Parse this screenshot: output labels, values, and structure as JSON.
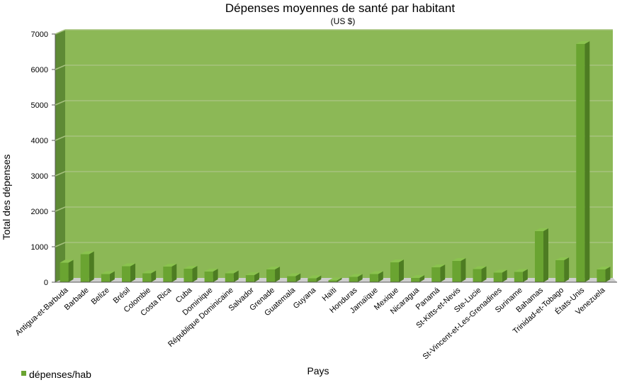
{
  "chart_data": {
    "type": "bar",
    "title": "Dépenses moyennes de santé par habitant",
    "subtitle": "(US $)",
    "xlabel": "Pays",
    "ylabel": "Total des dépenses",
    "ylim": [
      0,
      7000
    ],
    "yticks": [
      "0",
      "1000",
      "2000",
      "3000",
      "4000",
      "5000",
      "6000",
      "7000"
    ],
    "grid": true,
    "legend_position": "bottom-left",
    "colors": {
      "bar_front": "#6aa431",
      "bar_side": "#4d7c22",
      "bar_top": "#8bc34f",
      "plot_background": "#8bb655",
      "back_wall": "#8cb856",
      "side_wall": "#5e8a35",
      "gridline": "#a6c27e"
    },
    "categories": [
      "Antigua-et-Barbuda",
      "Barbade",
      "Belize",
      "Brésil",
      "Colombie",
      "Costa Rica",
      "Cuba",
      "Dominique",
      "République Dominicaine",
      "Salvador",
      "Grenade",
      "Guatemala",
      "Guyana",
      "Haïti",
      "Honduras",
      "Jamaïque",
      "Mexique",
      "Nicaragua",
      "Panamá",
      "St-Kitts-et-Nevis",
      "Ste-Lucie",
      "St-Vincent-et-Les-Grenadines",
      "Suriname",
      "Bahamas",
      "Trinidad-et-Tobago",
      "États-Unis",
      "Venezuela"
    ],
    "series": [
      {
        "name": "dépenses/hab",
        "values": [
          550,
          790,
          230,
          450,
          250,
          440,
          380,
          300,
          250,
          200,
          360,
          170,
          110,
          50,
          150,
          230,
          560,
          120,
          420,
          600,
          370,
          270,
          290,
          1440,
          620,
          6720,
          360
        ]
      }
    ]
  }
}
